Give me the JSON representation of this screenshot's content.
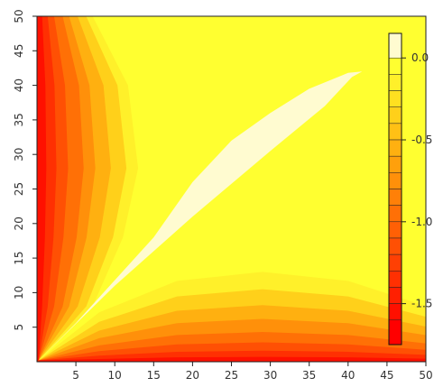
{
  "chart_data": {
    "type": "heatmap",
    "subtype": "filled-contour",
    "title": "",
    "xlabel": "",
    "ylabel": "",
    "xlim": [
      0,
      50
    ],
    "ylim": [
      0,
      50
    ],
    "x_ticks": [
      5,
      10,
      15,
      20,
      25,
      30,
      35,
      40,
      45,
      50
    ],
    "y_ticks": [
      5,
      10,
      15,
      20,
      25,
      30,
      35,
      40,
      45,
      50
    ],
    "colorbar": {
      "range": [
        -1.75,
        0.15
      ],
      "tick_values": [
        0.0,
        -0.5,
        -1.0,
        -1.5
      ],
      "tick_labels": [
        "0.0",
        "-0.5",
        "-1.0",
        "-1.5"
      ],
      "levels": [
        {
          "from": 0.0,
          "to": 0.15,
          "color": "#fffbd0"
        },
        {
          "from": -0.1,
          "to": 0.0,
          "color": "#ffff30"
        },
        {
          "from": -0.2,
          "to": -0.1,
          "color": "#fff02a"
        },
        {
          "from": -0.3,
          "to": -0.2,
          "color": "#ffe020"
        },
        {
          "from": -0.4,
          "to": -0.3,
          "color": "#ffd01a"
        },
        {
          "from": -0.5,
          "to": -0.4,
          "color": "#ffc015"
        },
        {
          "from": -0.6,
          "to": -0.5,
          "color": "#ffb010"
        },
        {
          "from": -0.7,
          "to": -0.6,
          "color": "#ffa00c"
        },
        {
          "from": -0.8,
          "to": -0.7,
          "color": "#ff900a"
        },
        {
          "from": -0.9,
          "to": -0.8,
          "color": "#ff8008"
        },
        {
          "from": -1.0,
          "to": -0.9,
          "color": "#ff7006"
        },
        {
          "from": -1.1,
          "to": -1.0,
          "color": "#ff6005"
        },
        {
          "from": -1.2,
          "to": -1.1,
          "color": "#ff5004"
        },
        {
          "from": -1.3,
          "to": -1.2,
          "color": "#ff4003"
        },
        {
          "from": -1.4,
          "to": -1.3,
          "color": "#ff3002"
        },
        {
          "from": -1.5,
          "to": -1.4,
          "color": "#ff2001"
        },
        {
          "from": -1.6,
          "to": -1.5,
          "color": "#ff1000"
        },
        {
          "from": -1.75,
          "to": -1.6,
          "color": "#ff0000"
        }
      ]
    },
    "regions": [
      {
        "name": "light ridge along diagonal",
        "level": 0.05,
        "points": [
          [
            0.2,
            0.2
          ],
          [
            10,
            11
          ],
          [
            20,
            21
          ],
          [
            30,
            30.5
          ],
          [
            37,
            37
          ],
          [
            40.5,
            41.2
          ],
          [
            41.8,
            42
          ],
          [
            40,
            41.8
          ],
          [
            35,
            39.5
          ],
          [
            30,
            36
          ],
          [
            25,
            32
          ],
          [
            20,
            26
          ],
          [
            15,
            18
          ],
          [
            10,
            11.8
          ],
          [
            5,
            5.6
          ]
        ]
      },
      {
        "name": "left wedge contours",
        "levels": [
          -0.1,
          -0.3,
          -0.5,
          -0.7,
          -0.9,
          -1.1,
          -1.3,
          -1.5
        ],
        "outer_x_at_mid": [
          13,
          11.5,
          9.5,
          7.5,
          6,
          4,
          2.5,
          1.2
        ]
      },
      {
        "name": "bottom lobe contours",
        "levels": [
          -0.1,
          -0.3,
          -0.5,
          -0.7,
          -0.9,
          -1.1,
          -1.3,
          -1.5
        ],
        "outer_y_at_mid": [
          13,
          10.5,
          8.2,
          6.2,
          4.3,
          2.8,
          1.6,
          0.7
        ]
      }
    ]
  }
}
